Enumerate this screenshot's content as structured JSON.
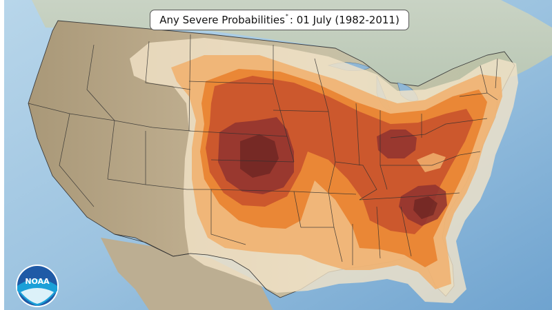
{
  "title": {
    "main": "Any Severe Probabilities",
    "superscript": "*",
    "date_part": ": 01 July (1982-2011)"
  },
  "logo": {
    "text": "NOAA"
  },
  "colors": {
    "ocean": "#9cc3e0",
    "land": "#b9ab8e",
    "level_1": "#f3e3c8",
    "level_2": "#f0b06e",
    "level_3": "#e9822f",
    "level_4": "#c9532c",
    "level_5": "#8f3230",
    "level_6": "#5a1d1d"
  }
}
